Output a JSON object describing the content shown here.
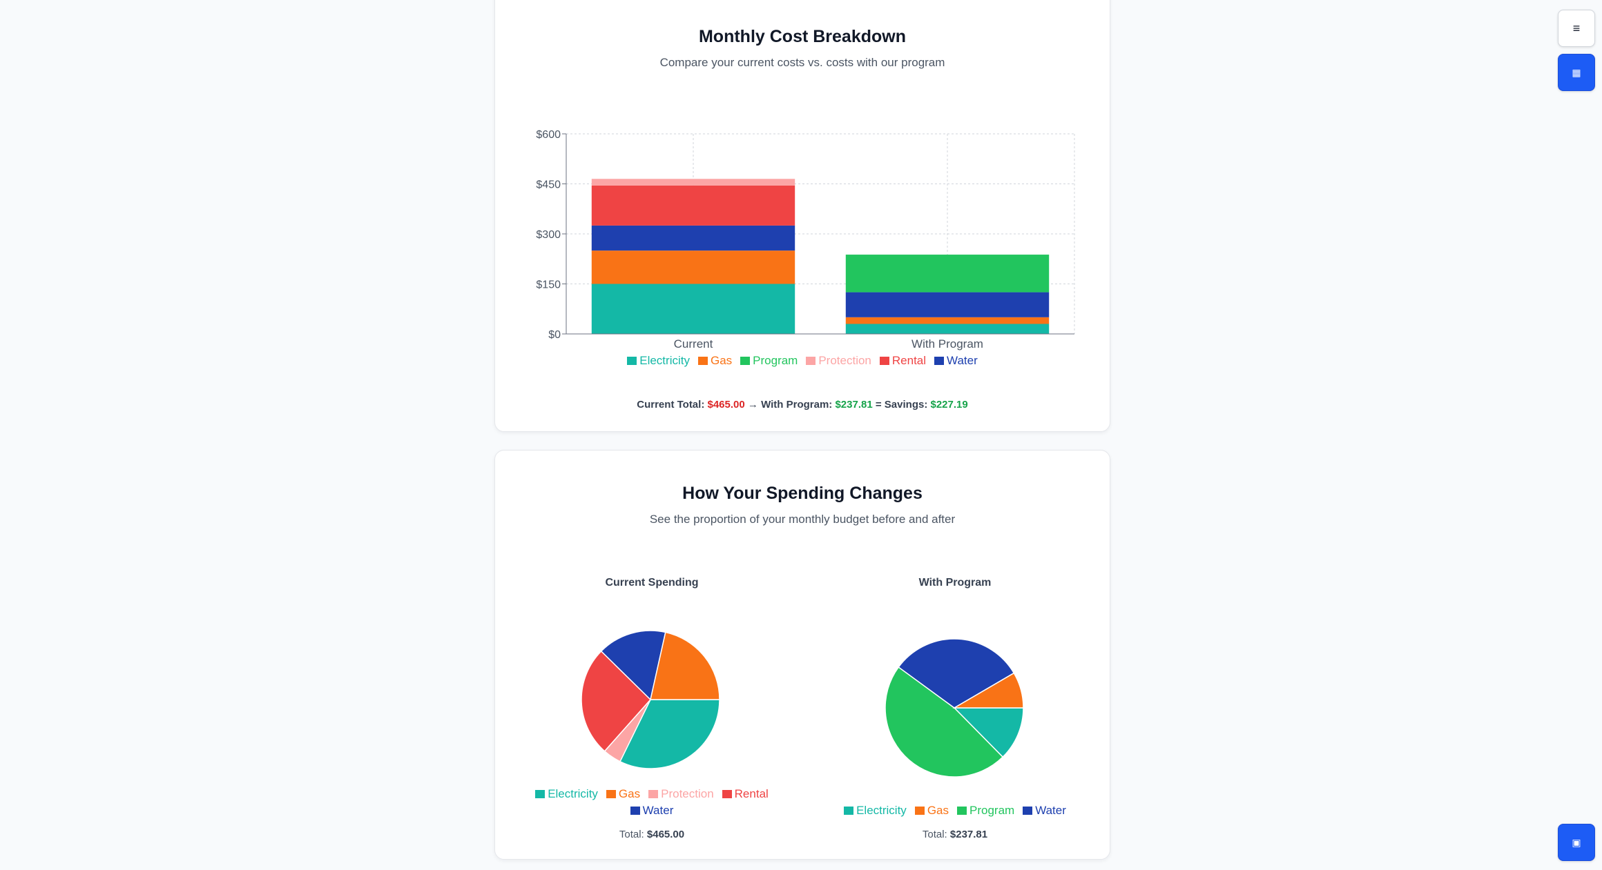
{
  "buttons": {
    "menu_icon": "≡",
    "calculator_icon": "▦",
    "save_icon": "▣"
  },
  "section1": {
    "title": "Monthly Cost Breakdown",
    "subtitle": "Compare your current costs vs. costs with our program",
    "summary": {
      "current_label": "Current Total:",
      "current_value": "$465.00",
      "arrow": "→",
      "program_label": "With Program:",
      "program_value": "$237.81",
      "equals": "=",
      "savings_label": "Savings:",
      "savings_value": "$227.19"
    }
  },
  "section2": {
    "title": "How Your Spending Changes",
    "subtitle": "See the proportion of your monthly budget before and after",
    "pie1_title": "Current Spending",
    "pie1_total_label": "Total:",
    "pie1_total_value": "$465.00",
    "pie2_title": "With Program",
    "pie2_total_label": "Total:",
    "pie2_total_value": "$237.81"
  },
  "colors": {
    "Electricity": "#14b8a6",
    "Gas": "#f97316",
    "Program": "#22c55e",
    "Protection": "#fca5a5",
    "Rental": "#ef4444",
    "Water": "#1e40af"
  },
  "chart_data": [
    {
      "type": "bar",
      "stacked": true,
      "categories": [
        "Current",
        "With Program"
      ],
      "series": [
        {
          "name": "Electricity",
          "values": [
            150,
            30
          ]
        },
        {
          "name": "Gas",
          "values": [
            100,
            20
          ]
        },
        {
          "name": "Water",
          "values": [
            75,
            75
          ]
        },
        {
          "name": "Rental",
          "values": [
            120,
            0
          ]
        },
        {
          "name": "Protection",
          "values": [
            20,
            0
          ]
        },
        {
          "name": "Program",
          "values": [
            0,
            112.81
          ]
        }
      ],
      "legend": [
        "Electricity",
        "Gas",
        "Program",
        "Protection",
        "Rental",
        "Water"
      ],
      "legend_position": "bottom",
      "ylim": [
        0,
        600
      ],
      "yticks": [
        "$0",
        "$150",
        "$300",
        "$450",
        "$600"
      ],
      "ytick_values": [
        0,
        150,
        300,
        450,
        600
      ],
      "grid": true
    },
    {
      "type": "pie",
      "title": "Current Spending",
      "labels": [
        "Electricity",
        "Protection",
        "Rental",
        "Water",
        "Gas"
      ],
      "values": [
        150,
        20,
        120,
        75,
        100
      ],
      "legend": [
        "Electricity",
        "Gas",
        "Protection",
        "Rental",
        "Water"
      ]
    },
    {
      "type": "pie",
      "title": "With Program",
      "labels": [
        "Electricity",
        "Program",
        "Water",
        "Gas"
      ],
      "values": [
        30,
        112.81,
        75,
        20
      ],
      "legend": [
        "Electricity",
        "Gas",
        "Program",
        "Water"
      ]
    }
  ]
}
